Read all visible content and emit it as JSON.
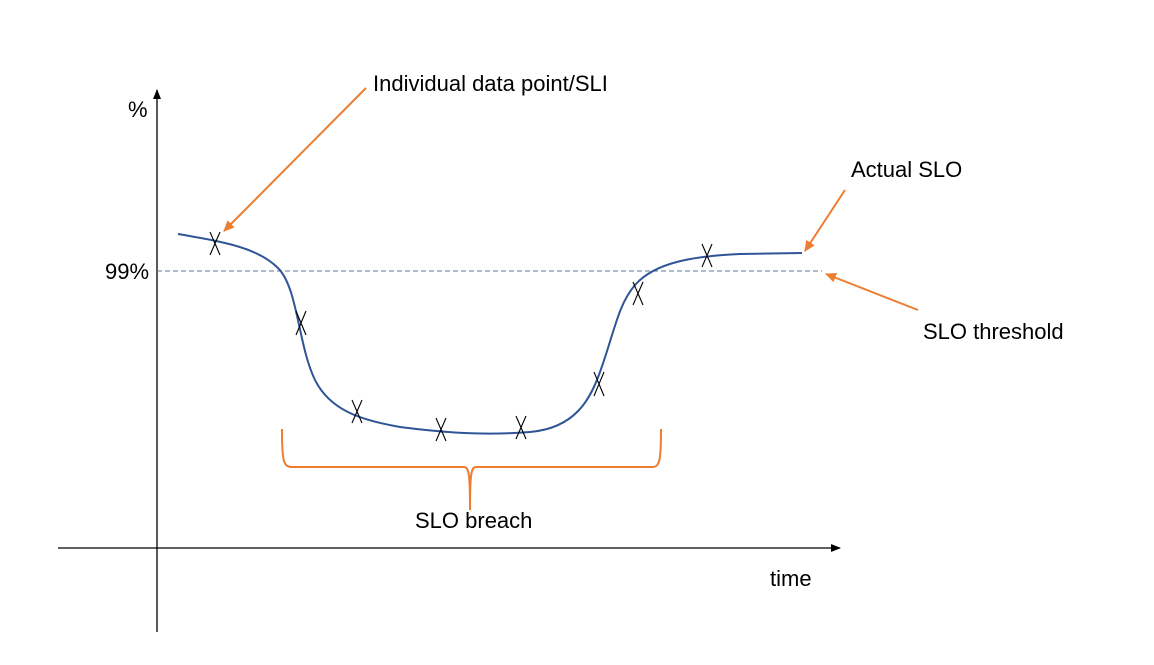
{
  "y_axis_label": "%",
  "x_axis_label": "time",
  "threshold_label": "99%",
  "annotations": {
    "data_point": "Individual data point/SLI",
    "actual_slo": "Actual SLO",
    "slo_threshold": "SLO threshold",
    "slo_breach": "SLO breach"
  },
  "colors": {
    "curve": "#2F5597",
    "annotation": "#ED7D31",
    "threshold_line": "#5B7B9B",
    "axis": "#000000"
  }
}
